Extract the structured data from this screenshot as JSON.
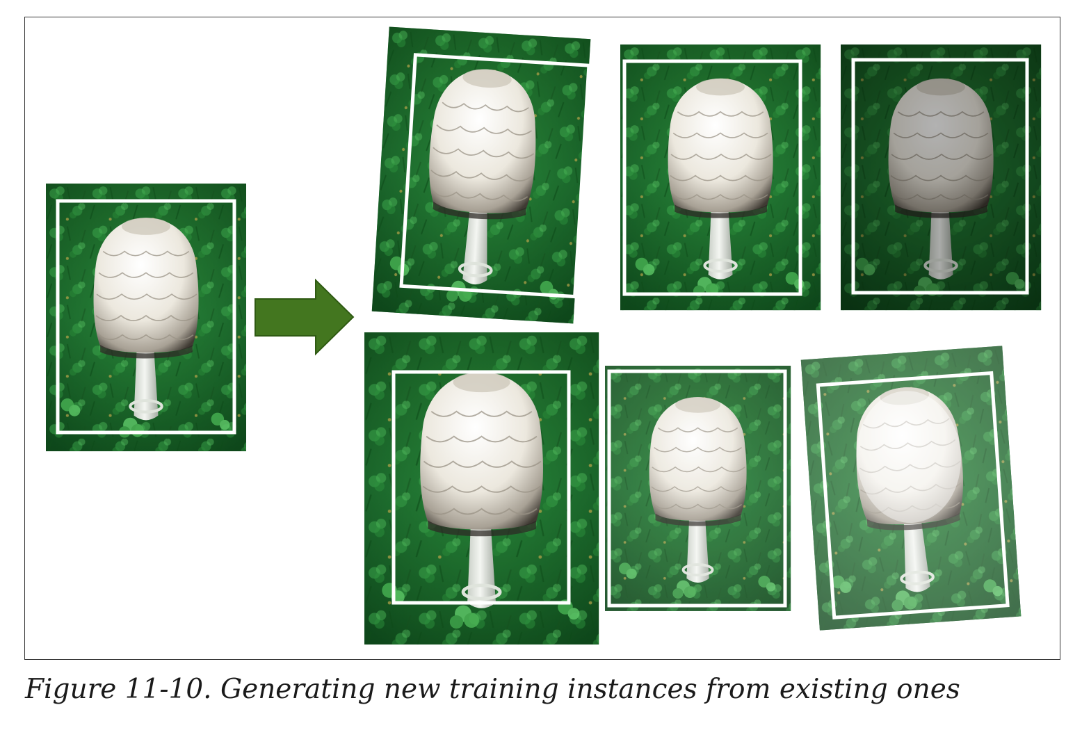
{
  "figure": {
    "caption": "Figure 11-10. Generating new training instances from existing ones",
    "colors": {
      "arrow_fill": "#43761f",
      "arrow_stroke": "#2f5a13",
      "grass_dark": "#0f3d16",
      "grass_mid": "#1f7a2d",
      "grass_light": "#3fa14a",
      "cap_white": "#f4f1ea",
      "cap_shadow": "#8f8a80",
      "frame_border": "#333333",
      "bbox": "#ffffff"
    },
    "original": {
      "name": "original-photo"
    },
    "augmented": [
      {
        "name": "augmented-rotated-left",
        "rotation_deg": 3,
        "brightness": 1.0,
        "contrast": 1.0,
        "crop_zoom": 1.0
      },
      {
        "name": "augmented-shifted",
        "rotation_deg": 0,
        "brightness": 1.0,
        "contrast": 1.0,
        "crop_zoom": 1.0
      },
      {
        "name": "augmented-darker",
        "rotation_deg": 0,
        "brightness": 0.75,
        "contrast": 1.05,
        "crop_zoom": 1.0
      },
      {
        "name": "augmented-zoomed",
        "rotation_deg": 0,
        "brightness": 1.0,
        "contrast": 1.0,
        "crop_zoom": 1.15
      },
      {
        "name": "augmented-low-contrast",
        "rotation_deg": 0,
        "brightness": 1.05,
        "contrast": 0.9,
        "crop_zoom": 1.0
      },
      {
        "name": "augmented-rotated-brighter",
        "rotation_deg": -4,
        "brightness": 1.25,
        "contrast": 1.0,
        "crop_zoom": 1.0
      }
    ]
  }
}
